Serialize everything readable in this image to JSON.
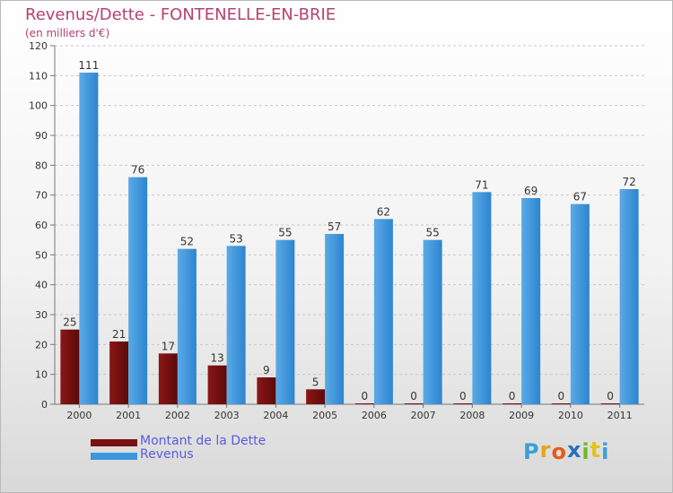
{
  "header": {
    "title": "Revenus/Dette - FONTENELLE-EN-BRIE",
    "subtitle": "(en milliers d'€)"
  },
  "chart_data": {
    "type": "bar",
    "categories": [
      "2000",
      "2001",
      "2002",
      "2003",
      "2004",
      "2005",
      "2006",
      "2007",
      "2008",
      "2009",
      "2010",
      "2011"
    ],
    "series": [
      {
        "name": "Montant de la Dette",
        "values": [
          25,
          21,
          17,
          13,
          9,
          5,
          0,
          0,
          0,
          0,
          0,
          0
        ],
        "color": "#7a1212"
      },
      {
        "name": "Revenus",
        "values": [
          111,
          76,
          52,
          53,
          55,
          57,
          62,
          55,
          71,
          69,
          67,
          72
        ],
        "color": "#3e96dd"
      }
    ],
    "yticks": [
      0,
      10,
      20,
      30,
      40,
      50,
      60,
      70,
      80,
      90,
      100,
      110,
      120
    ],
    "ylim": [
      0,
      120
    ],
    "grid": true,
    "legend_position": "bottom-left"
  },
  "legend": {
    "items": [
      {
        "label": "Montant de la Dette",
        "color": "#7a1212"
      },
      {
        "label": "Revenus",
        "color": "#3e96dd"
      }
    ]
  },
  "logo": {
    "letters": [
      "P",
      "r",
      "o",
      "x",
      "i",
      "t",
      "i"
    ],
    "colors": [
      "#3aa0d8",
      "#e8a31a",
      "#e85a1a",
      "#2a6fb8",
      "#6aba2a",
      "#e8c21a",
      "#3aa0d8"
    ]
  }
}
